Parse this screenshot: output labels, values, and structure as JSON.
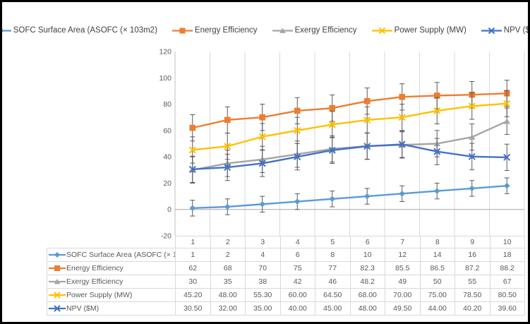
{
  "chart_data": {
    "type": "line",
    "title": "",
    "categories": [
      "1",
      "2",
      "3",
      "4",
      "5",
      "6",
      "7",
      "8",
      "9",
      "10"
    ],
    "y_axis": {
      "min": -20,
      "max": 120,
      "step": 20,
      "tick_labels": [
        "120",
        "100",
        "80",
        "60",
        "40",
        "20",
        "0",
        "-20"
      ]
    },
    "grid": "vertical-only",
    "legend_position": "top",
    "has_data_table": true,
    "has_error_bars": true,
    "series": [
      {
        "name": "SOFC Surface Area (ASOFC (× 103m2)",
        "marker": "diamond",
        "color": "#5B9BD5",
        "values": [
          1,
          2,
          4,
          6,
          8,
          10,
          12,
          14,
          16,
          18
        ],
        "display": [
          "1",
          "2",
          "4",
          "6",
          "8",
          "10",
          "12",
          "14",
          "16",
          "18"
        ],
        "error": 6
      },
      {
        "name": "Energy Efficiency",
        "marker": "square",
        "color": "#ED7D31",
        "values": [
          62,
          68,
          70,
          75,
          77,
          82.3,
          85.5,
          86.5,
          87.2,
          88.2
        ],
        "display": [
          "62",
          "68",
          "70",
          "75",
          "77",
          "82.3",
          "85.5",
          "86.5",
          "87.2",
          "88.2"
        ],
        "error": 10
      },
      {
        "name": "Exergy Efficiency",
        "marker": "triangle",
        "color": "#A5A5A5",
        "values": [
          30,
          35,
          38,
          42,
          46,
          48.2,
          49,
          50,
          55,
          67
        ],
        "display": [
          "30",
          "35",
          "38",
          "42",
          "46",
          "48.2",
          "49",
          "50",
          "55",
          "67"
        ],
        "error": 10
      },
      {
        "name": "Power Supply (MW)",
        "marker": "x",
        "color": "#FFC000",
        "values": [
          45.2,
          48,
          55.3,
          60,
          64.5,
          68,
          70,
          75,
          78.5,
          80.5
        ],
        "display": [
          "45.20",
          "48.00",
          "55.30",
          "60.00",
          "64.50",
          "68.00",
          "70.00",
          "75.00",
          "78.50",
          "80.50"
        ],
        "error": 10
      },
      {
        "name": "NPV ($M)",
        "marker": "x",
        "color": "#4472C4",
        "values": [
          30.5,
          32,
          35,
          40,
          45,
          48,
          49.5,
          44,
          40.2,
          39.6
        ],
        "display": [
          "30.50",
          "32.00",
          "35.00",
          "40.00",
          "45.00",
          "48.00",
          "49.50",
          "44.00",
          "40.20",
          "39.60"
        ],
        "error": 10
      }
    ]
  },
  "style": {
    "gridline": "#D9D9D9",
    "axis_line": "#BFBFBF",
    "zero_line": "#A6A6A6",
    "error_bar": "#595959",
    "axis_text": "#595959",
    "legend_text": "#404040",
    "table_border": "#D9D9D9",
    "outer_border": "#000000",
    "background": "#FFFFFF"
  }
}
